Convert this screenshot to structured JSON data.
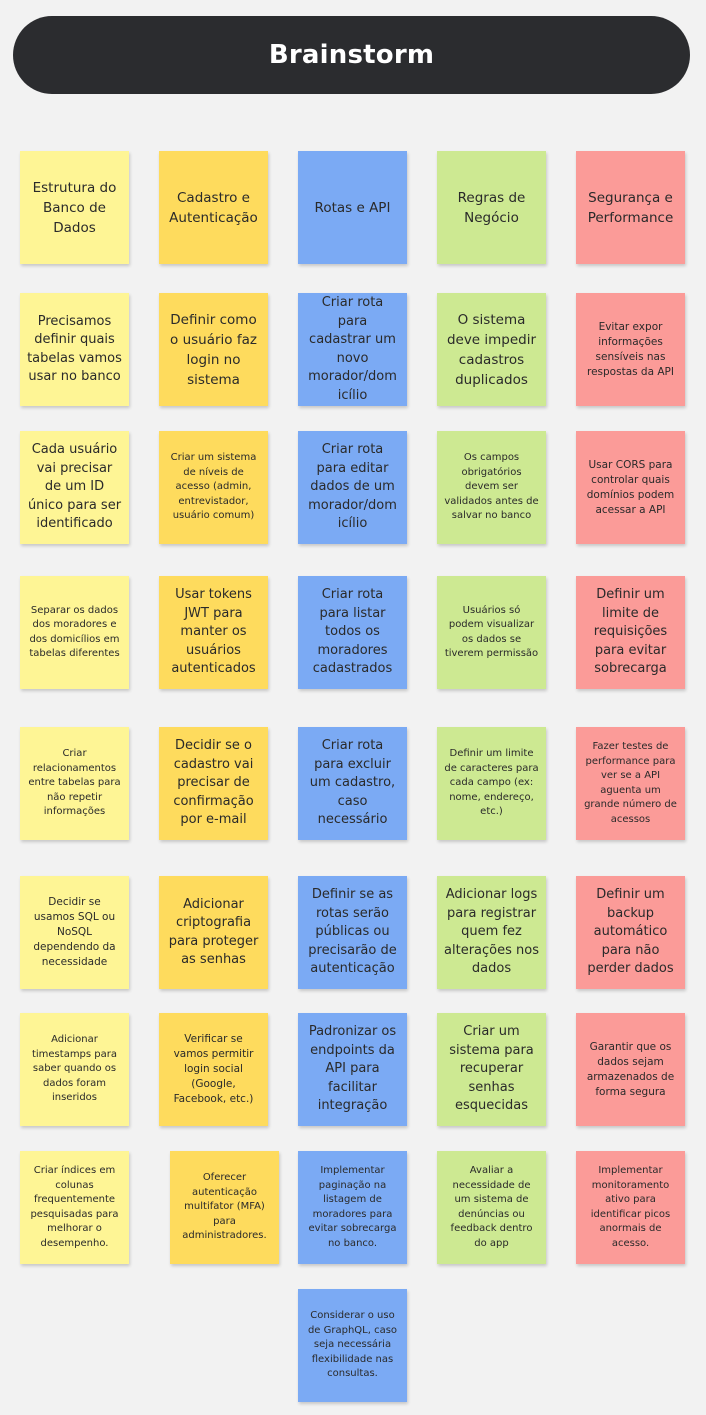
{
  "board": {
    "title": "Brainstorm"
  },
  "columns": [
    {
      "header": "Estrutura do Banco de Dados",
      "notes": [
        "Precisamos definir quais tabelas vamos usar no banco",
        "Cada usuário vai precisar de um ID único para ser identificado",
        "Separar os dados dos moradores e dos domicílios em tabelas diferentes",
        "Criar relacionamentos entre tabelas para não repetir informações",
        "Decidir se usamos SQL ou NoSQL dependendo da necessidade",
        "Adicionar timestamps para saber quando os dados foram inseridos",
        "Criar índices em colunas frequentemente pesquisadas para melhorar o desempenho."
      ]
    },
    {
      "header": "Cadastro e Autenticação",
      "notes": [
        "Definir como o usuário faz login no sistema",
        "Criar um sistema de níveis de acesso (admin, entrevistador, usuário comum)",
        "Usar tokens JWT para manter os usuários autenticados",
        "Decidir se o cadastro vai precisar de confirmação por e-mail",
        "Adicionar criptografia para proteger as senhas",
        "Verificar se vamos permitir login social (Google, Facebook, etc.)",
        "Oferecer autenticação multifator (MFA) para administradores."
      ]
    },
    {
      "header": "Rotas e API",
      "notes": [
        "Criar rota para cadastrar um novo morador/dom icílio",
        "Criar rota para editar dados de um morador/dom icílio",
        "Criar rota para listar todos os moradores cadastrados",
        "Criar rota para excluir um cadastro, caso necessário",
        "Definir se as rotas serão públicas ou precisarão de autenticação",
        "Padronizar os endpoints da API para facilitar integração",
        "Implementar paginação na listagem de moradores para evitar sobrecarga no banco.",
        "Considerar o uso de GraphQL, caso seja necessária flexibilidade nas consultas."
      ]
    },
    {
      "header": "Regras de Negócio",
      "notes": [
        "O sistema deve impedir cadastros duplicados",
        "Os campos obrigatórios devem ser validados antes de salvar no banco",
        "Usuários só podem visualizar os dados se tiverem permissão",
        "Definir um limite de caracteres para cada campo (ex: nome, endereço, etc.)",
        "Adicionar logs para registrar quem fez alterações nos dados",
        "Criar um sistema para recuperar senhas esquecidas",
        "Avaliar a necessidade de um sistema de denúncias ou feedback dentro do app"
      ]
    },
    {
      "header": "Segurança e Performance",
      "notes": [
        "Evitar expor informações sensíveis nas respostas da API",
        "Usar CORS para controlar quais domínios podem acessar a API",
        "Definir um limite de requisições para evitar sobrecarga",
        "Fazer testes de performance para ver se a API aguenta um grande número de acessos",
        "Definir um backup automático para não perder dados",
        "Garantir que os dados sejam armazenados de forma segura",
        "Implementar monitoramento ativo para identificar picos anormais de acesso."
      ]
    }
  ],
  "colors": {
    "background": "#f2f2f2",
    "header_bar": "#2b2c2f",
    "yellow_light": "#fef595",
    "yellow": "#fedb5d",
    "blue": "#7baaf4",
    "green": "#cde992",
    "red": "#fb9b98"
  }
}
